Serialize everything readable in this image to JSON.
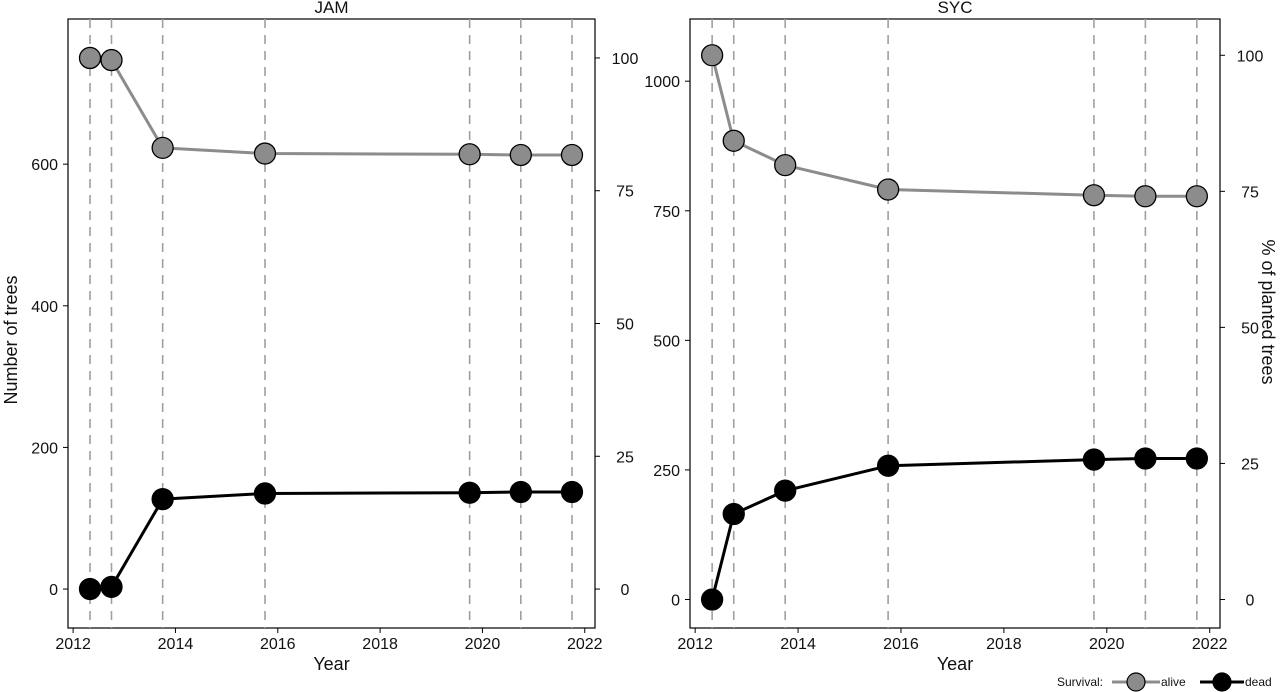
{
  "shared": {
    "xlabel": "Year",
    "ylabel_left": "Number of trees",
    "ylabel_right": "% of planted trees",
    "x_ticks": [
      2012,
      2014,
      2016,
      2018,
      2020,
      2022
    ],
    "survey_years": [
      2012.33,
      2012.75,
      2013.75,
      2015.75,
      2019.75,
      2020.75,
      2021.75
    ],
    "colors": {
      "alive": "#8c8c8c",
      "dead": "#000000",
      "vline": "#a0a0a0"
    },
    "legend": {
      "title": "Survival:",
      "items": [
        "alive",
        "dead"
      ],
      "placement": "bottom-right"
    }
  },
  "chart_data": [
    {
      "type": "line",
      "title": "JAM",
      "xlim": [
        2011.9,
        2022.2
      ],
      "ylim": [
        -55,
        805
      ],
      "y_ticks": [
        0,
        200,
        400,
        600
      ],
      "right_ticks": [
        0,
        25,
        50,
        75,
        100
      ],
      "right_axis_total": 750,
      "grid": false,
      "series": [
        {
          "name": "alive",
          "x": [
            2012.33,
            2012.75,
            2013.75,
            2015.75,
            2019.75,
            2020.75,
            2021.75
          ],
          "values": [
            750,
            747,
            623,
            615,
            614,
            613,
            613
          ]
        },
        {
          "name": "dead",
          "x": [
            2012.33,
            2012.75,
            2013.75,
            2015.75,
            2019.75,
            2020.75,
            2021.75
          ],
          "values": [
            0,
            3,
            127,
            135,
            136,
            137,
            137
          ]
        }
      ]
    },
    {
      "type": "line",
      "title": "SYC",
      "xlim": [
        2011.9,
        2022.2
      ],
      "ylim": [
        -55,
        1120
      ],
      "y_ticks": [
        0,
        250,
        500,
        750,
        1000
      ],
      "right_ticks": [
        0,
        25,
        50,
        75,
        100
      ],
      "right_axis_total": 1050,
      "grid": false,
      "series": [
        {
          "name": "alive",
          "x": [
            2012.33,
            2012.75,
            2013.75,
            2015.75,
            2019.75,
            2020.75,
            2021.75
          ],
          "values": [
            1050,
            885,
            838,
            791,
            780,
            778,
            778
          ]
        },
        {
          "name": "dead",
          "x": [
            2012.33,
            2012.75,
            2013.75,
            2015.75,
            2019.75,
            2020.75,
            2021.75
          ],
          "values": [
            0,
            165,
            210,
            258,
            270,
            272,
            272
          ]
        }
      ]
    }
  ]
}
